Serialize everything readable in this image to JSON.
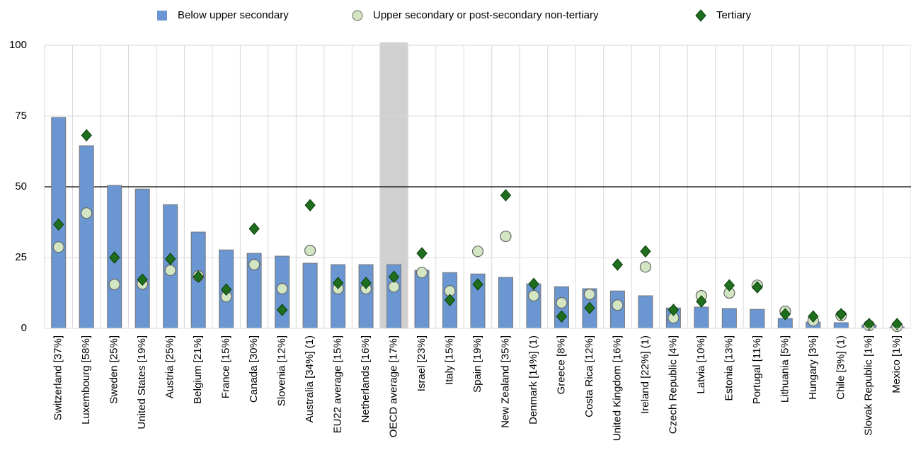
{
  "chart_data": {
    "type": "bar",
    "categories": [
      "Switzerland [37%]",
      "Luxembourg [58%]",
      "Sweden [25%]",
      "United States [19%]",
      "Austria [25%]",
      "Belgium [21%]",
      "France [15%]",
      "Canada [30%]",
      "Slovenia [12%]",
      "Australia [34%] (1)",
      "EU22 average [15%]",
      "Netherlands [16%]",
      "OECD average [17%]",
      "Israel [23%]",
      "Italy [15%]",
      "Spain [19%]",
      "New Zealand [35%]",
      "Denmark [14%] (1)",
      "Greece [8%]",
      "Costa Rica [12%]",
      "United Kingdom [16%]",
      "Ireland [22%] (1)",
      "Czech Republic [4%]",
      "Latvia [10%]",
      "Estonia [13%]",
      "Portugal [11%]",
      "Lithuania [5%]",
      "Hungary [3%]",
      "Chile [3%] (1)",
      "Slovak Republic [1%]",
      "Mexico [1%]"
    ],
    "series": [
      {
        "name": "Below upper secondary",
        "kind": "bar",
        "color": "#6a96d2",
        "values": [
          74.5,
          64.5,
          50.5,
          49.2,
          43.7,
          34,
          27.7,
          26.5,
          25.5,
          23,
          22.5,
          22.5,
          22.5,
          20.5,
          19.7,
          19.2,
          18,
          15.7,
          14.7,
          14,
          13.2,
          11.5,
          7.2,
          7.5,
          7,
          6.7,
          3.5,
          2.2,
          2,
          1.2,
          0.5
        ]
      },
      {
        "name": "Upper secondary or post-secondary non-tertiary",
        "kind": "circle",
        "color": "#d3e6c4",
        "values": [
          28.7,
          40.7,
          15.5,
          15.7,
          20.5,
          18.5,
          11.2,
          22.5,
          14,
          27.5,
          14,
          14,
          14.7,
          19.7,
          13.2,
          27.2,
          32.5,
          11.5,
          9,
          12,
          8.2,
          21.7,
          3.7,
          11.5,
          12.5,
          15.2,
          6,
          2.7,
          4.5,
          1,
          0.7
        ]
      },
      {
        "name": "Tertiary",
        "kind": "diamond",
        "color": "#1e6e1e",
        "values": [
          36.7,
          68.2,
          25,
          17.2,
          24.5,
          18.2,
          13.7,
          35.2,
          6.5,
          43.5,
          16,
          16,
          18.2,
          26.5,
          10,
          15.5,
          47,
          15.7,
          4.2,
          7.2,
          22.5,
          27.2,
          6.5,
          9.5,
          15.2,
          14.5,
          5,
          4.2,
          5,
          1.5,
          1.5
        ]
      }
    ],
    "ylim": [
      0,
      100
    ],
    "yticks": [
      0,
      25,
      50,
      75,
      100
    ],
    "grid": true,
    "reference_line": 50,
    "highlight_category": "OECD average [17%]",
    "legend": "top"
  }
}
